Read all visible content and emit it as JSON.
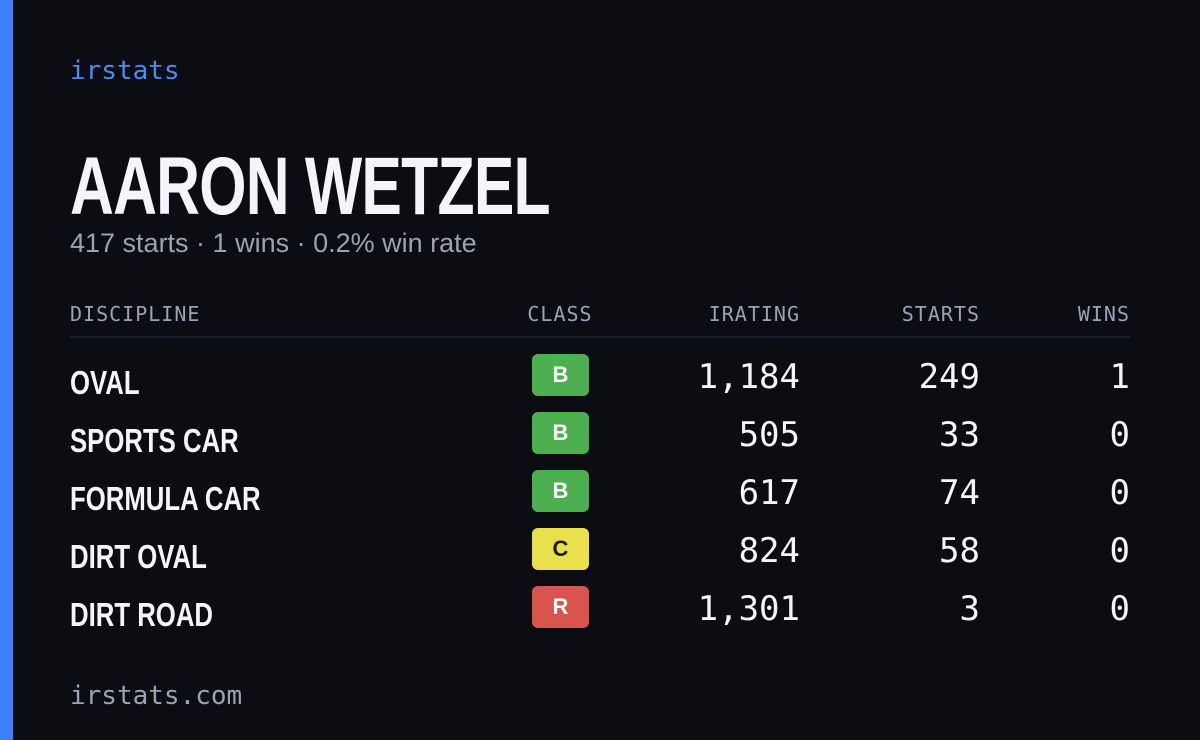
{
  "brand": "irstats",
  "driver": {
    "name": "AARON WETZEL",
    "summary": "417 starts · 1 wins · 0.2% win rate"
  },
  "table": {
    "headers": [
      "DISCIPLINE",
      "CLASS",
      "IRATING",
      "STARTS",
      "WINS"
    ],
    "rows": [
      {
        "discipline": "OVAL",
        "class": "B",
        "class_color": "#4caf50",
        "irating": "1,184",
        "starts": "249",
        "wins": "1"
      },
      {
        "discipline": "SPORTS CAR",
        "class": "B",
        "class_color": "#4caf50",
        "irating": "505",
        "starts": "33",
        "wins": "0"
      },
      {
        "discipline": "FORMULA CAR",
        "class": "B",
        "class_color": "#4caf50",
        "irating": "617",
        "starts": "74",
        "wins": "0"
      },
      {
        "discipline": "DIRT OVAL",
        "class": "C",
        "class_color": "#e9e14b",
        "irating": "824",
        "starts": "58",
        "wins": "0"
      },
      {
        "discipline": "DIRT ROAD",
        "class": "R",
        "class_color": "#d9534f",
        "irating": "1,301",
        "starts": "3",
        "wins": "0"
      }
    ]
  },
  "footer": "irstats.com"
}
